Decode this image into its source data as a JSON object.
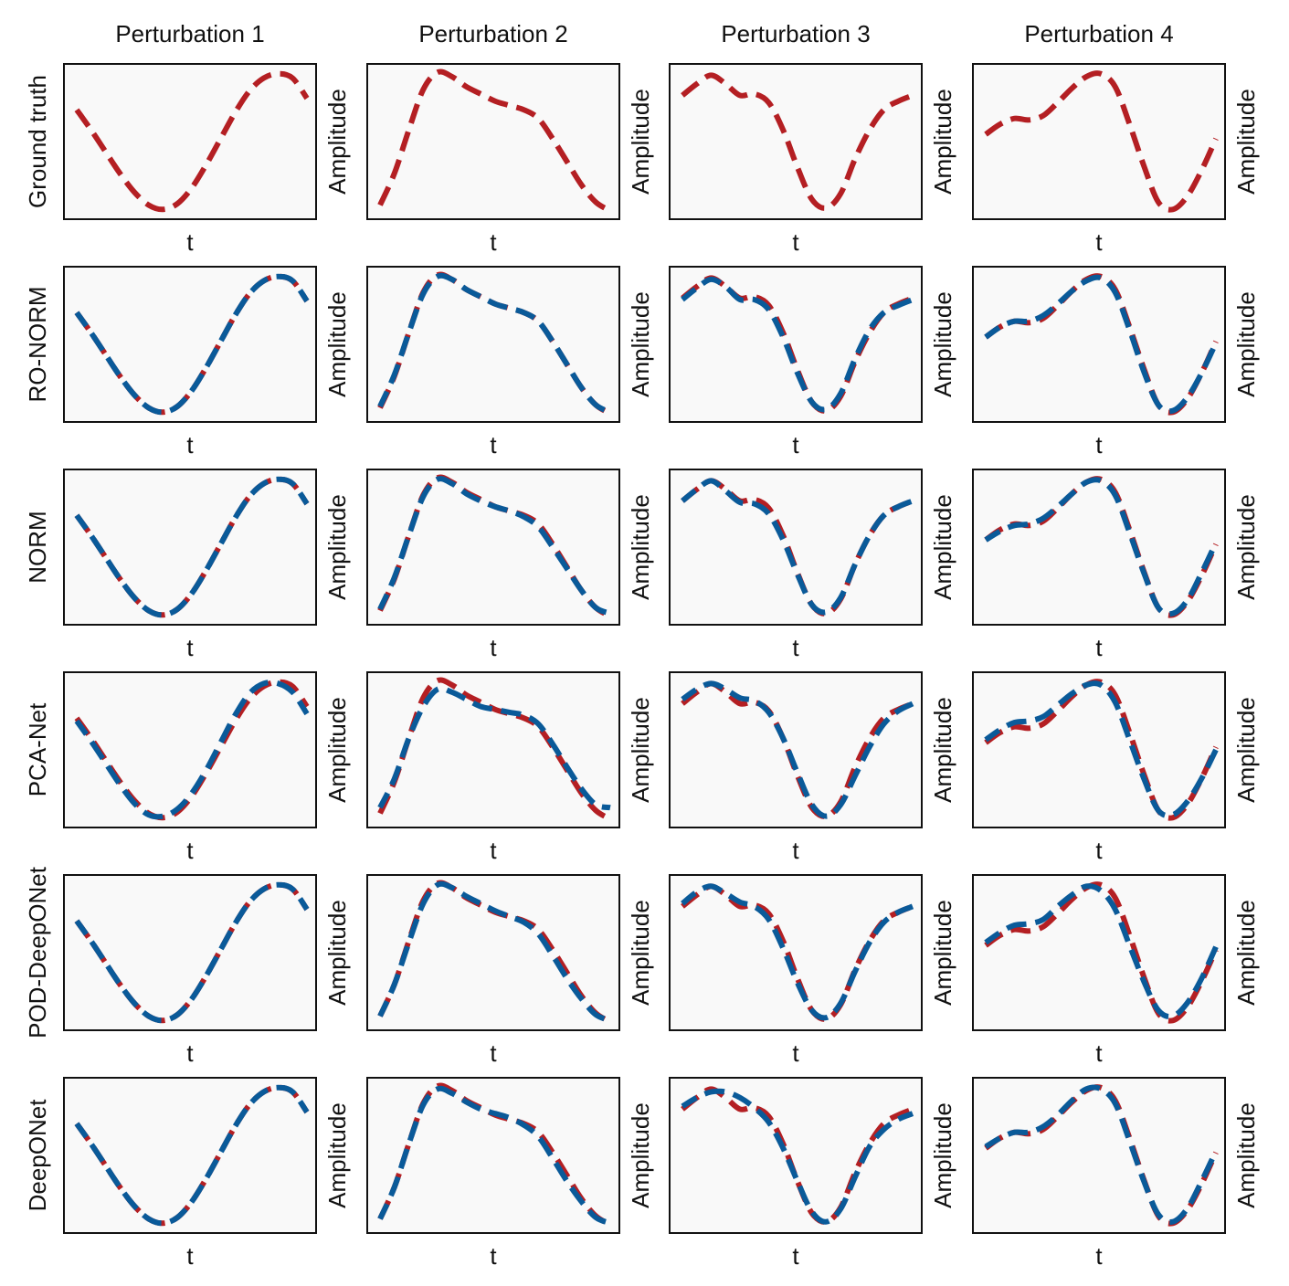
{
  "colors": {
    "truth": "#b41f23",
    "prediction": "#0a5a99",
    "panel_bg": "#f9f9f9",
    "frame": "#111111"
  },
  "chart_data": {
    "type": "line",
    "layout": "grid 6 rows x 4 columns",
    "column_titles": [
      "Perturbation 1",
      "Perturbation 2",
      "Perturbation 3",
      "Perturbation 4"
    ],
    "row_labels": [
      "Ground truth",
      "RO-NORM",
      "NORM",
      "PCA-Net",
      "POD-DeepONet",
      "DeepONet"
    ],
    "xlabel": "t",
    "ylabel": "Amplitude",
    "ticks": "none",
    "x": [
      0,
      0.0625,
      0.125,
      0.1875,
      0.25,
      0.3125,
      0.375,
      0.4375,
      0.5,
      0.5625,
      0.625,
      0.6875,
      0.75,
      0.8125,
      0.875,
      0.9375,
      1
    ],
    "ylim": [
      0,
      1
    ],
    "ground_truth": [
      [
        0.72,
        0.58,
        0.43,
        0.28,
        0.15,
        0.06,
        0.03,
        0.07,
        0.18,
        0.34,
        0.52,
        0.7,
        0.85,
        0.94,
        0.97,
        0.94,
        0.8
      ],
      [
        0.06,
        0.28,
        0.58,
        0.86,
        0.98,
        0.95,
        0.88,
        0.83,
        0.78,
        0.75,
        0.72,
        0.66,
        0.52,
        0.36,
        0.2,
        0.08,
        0.02
      ],
      [
        0.82,
        0.9,
        0.96,
        0.9,
        0.82,
        0.83,
        0.77,
        0.58,
        0.32,
        0.1,
        0.04,
        0.14,
        0.38,
        0.58,
        0.72,
        0.78,
        0.82
      ],
      [
        0.55,
        0.62,
        0.66,
        0.65,
        0.68,
        0.77,
        0.87,
        0.95,
        0.97,
        0.88,
        0.62,
        0.33,
        0.08,
        0.03,
        0.12,
        0.3,
        0.52
      ]
    ],
    "series": [
      {
        "name": "RO-NORM",
        "values": [
          [
            0.72,
            0.58,
            0.43,
            0.28,
            0.15,
            0.06,
            0.03,
            0.07,
            0.18,
            0.34,
            0.52,
            0.7,
            0.85,
            0.94,
            0.97,
            0.94,
            0.8
          ],
          [
            0.07,
            0.29,
            0.58,
            0.85,
            0.97,
            0.95,
            0.88,
            0.83,
            0.78,
            0.75,
            0.72,
            0.66,
            0.52,
            0.36,
            0.2,
            0.08,
            0.03
          ],
          [
            0.81,
            0.89,
            0.95,
            0.9,
            0.81,
            0.81,
            0.74,
            0.55,
            0.3,
            0.1,
            0.05,
            0.16,
            0.4,
            0.6,
            0.72,
            0.77,
            0.81
          ],
          [
            0.55,
            0.62,
            0.66,
            0.66,
            0.7,
            0.78,
            0.87,
            0.94,
            0.96,
            0.86,
            0.6,
            0.31,
            0.08,
            0.04,
            0.13,
            0.3,
            0.51
          ]
        ]
      },
      {
        "name": "NORM",
        "values": [
          [
            0.72,
            0.58,
            0.43,
            0.28,
            0.15,
            0.06,
            0.03,
            0.07,
            0.18,
            0.34,
            0.52,
            0.7,
            0.85,
            0.94,
            0.97,
            0.94,
            0.8
          ],
          [
            0.07,
            0.29,
            0.58,
            0.85,
            0.97,
            0.94,
            0.87,
            0.82,
            0.78,
            0.75,
            0.71,
            0.64,
            0.5,
            0.35,
            0.2,
            0.08,
            0.04
          ],
          [
            0.82,
            0.9,
            0.96,
            0.89,
            0.81,
            0.8,
            0.73,
            0.55,
            0.31,
            0.1,
            0.05,
            0.15,
            0.38,
            0.58,
            0.72,
            0.78,
            0.82
          ],
          [
            0.55,
            0.61,
            0.65,
            0.66,
            0.7,
            0.78,
            0.87,
            0.95,
            0.96,
            0.86,
            0.6,
            0.32,
            0.08,
            0.04,
            0.13,
            0.32,
            0.53
          ]
        ]
      },
      {
        "name": "PCA-Net",
        "values": [
          [
            0.7,
            0.56,
            0.41,
            0.26,
            0.13,
            0.05,
            0.04,
            0.09,
            0.2,
            0.36,
            0.55,
            0.74,
            0.89,
            0.96,
            0.96,
            0.9,
            0.75
          ],
          [
            0.1,
            0.3,
            0.58,
            0.8,
            0.92,
            0.9,
            0.85,
            0.8,
            0.78,
            0.76,
            0.74,
            0.68,
            0.54,
            0.38,
            0.23,
            0.12,
            0.1
          ],
          [
            0.85,
            0.92,
            0.96,
            0.92,
            0.86,
            0.84,
            0.76,
            0.58,
            0.34,
            0.12,
            0.04,
            0.12,
            0.32,
            0.52,
            0.68,
            0.77,
            0.82
          ],
          [
            0.57,
            0.64,
            0.69,
            0.7,
            0.73,
            0.81,
            0.89,
            0.95,
            0.95,
            0.83,
            0.57,
            0.3,
            0.08,
            0.05,
            0.14,
            0.3,
            0.5
          ]
        ]
      },
      {
        "name": "POD-DeepONet",
        "values": [
          [
            0.72,
            0.58,
            0.43,
            0.28,
            0.15,
            0.06,
            0.03,
            0.07,
            0.18,
            0.34,
            0.52,
            0.7,
            0.85,
            0.94,
            0.97,
            0.94,
            0.8
          ],
          [
            0.06,
            0.28,
            0.57,
            0.84,
            0.97,
            0.95,
            0.89,
            0.84,
            0.79,
            0.75,
            0.71,
            0.63,
            0.48,
            0.32,
            0.18,
            0.07,
            0.03
          ],
          [
            0.84,
            0.92,
            0.96,
            0.91,
            0.85,
            0.82,
            0.73,
            0.53,
            0.29,
            0.1,
            0.05,
            0.15,
            0.37,
            0.57,
            0.71,
            0.78,
            0.82
          ],
          [
            0.57,
            0.64,
            0.69,
            0.7,
            0.73,
            0.82,
            0.9,
            0.96,
            0.93,
            0.8,
            0.55,
            0.3,
            0.1,
            0.06,
            0.15,
            0.32,
            0.54
          ]
        ]
      },
      {
        "name": "DeepONet",
        "values": [
          [
            0.72,
            0.58,
            0.43,
            0.28,
            0.15,
            0.06,
            0.03,
            0.07,
            0.18,
            0.34,
            0.52,
            0.7,
            0.85,
            0.94,
            0.97,
            0.94,
            0.8
          ],
          [
            0.06,
            0.28,
            0.58,
            0.85,
            0.96,
            0.93,
            0.87,
            0.82,
            0.79,
            0.76,
            0.71,
            0.63,
            0.48,
            0.32,
            0.18,
            0.07,
            0.03
          ],
          [
            0.84,
            0.9,
            0.94,
            0.94,
            0.9,
            0.83,
            0.73,
            0.55,
            0.32,
            0.11,
            0.04,
            0.13,
            0.35,
            0.56,
            0.68,
            0.75,
            0.79
          ],
          [
            0.56,
            0.62,
            0.66,
            0.66,
            0.7,
            0.78,
            0.88,
            0.96,
            0.96,
            0.86,
            0.6,
            0.32,
            0.09,
            0.04,
            0.13,
            0.32,
            0.53
          ]
        ]
      }
    ]
  }
}
